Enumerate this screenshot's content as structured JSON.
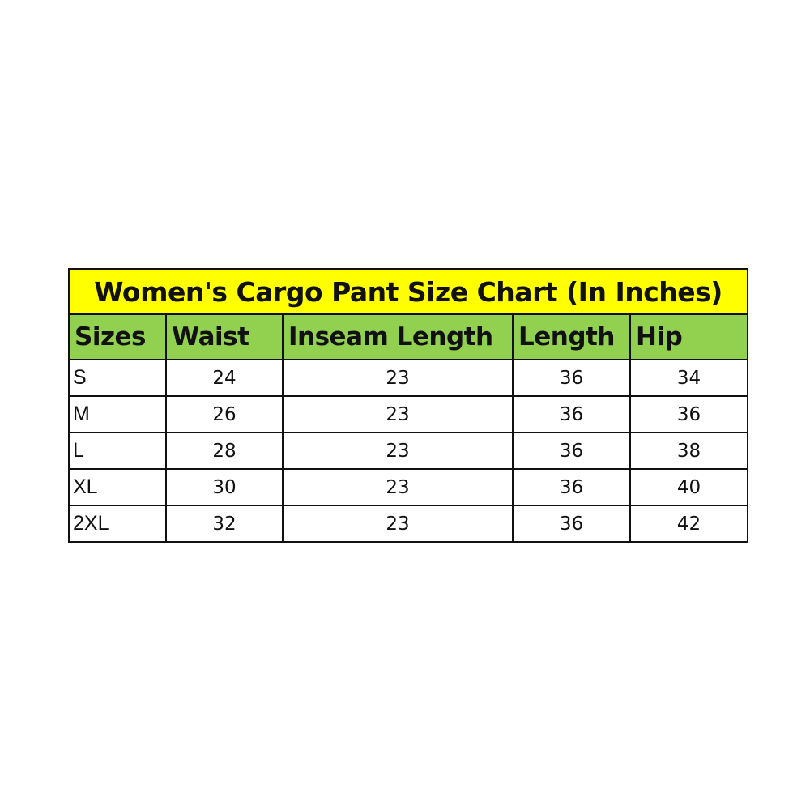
{
  "title": "Women's Cargo Pant Size Chart (In Inches)",
  "colors": {
    "title_bg": "#ffff00",
    "header_bg": "#92d050"
  },
  "headers": [
    "Sizes",
    "Waist",
    "Inseam Length",
    "Length",
    "Hip"
  ],
  "rows": [
    [
      "S",
      "24",
      "23",
      "36",
      "34"
    ],
    [
      "M",
      "26",
      "23",
      "36",
      "36"
    ],
    [
      "L",
      "28",
      "23",
      "36",
      "38"
    ],
    [
      "XL",
      "30",
      "23",
      "36",
      "40"
    ],
    [
      "2XL",
      "32",
      "23",
      "36",
      "42"
    ]
  ]
}
